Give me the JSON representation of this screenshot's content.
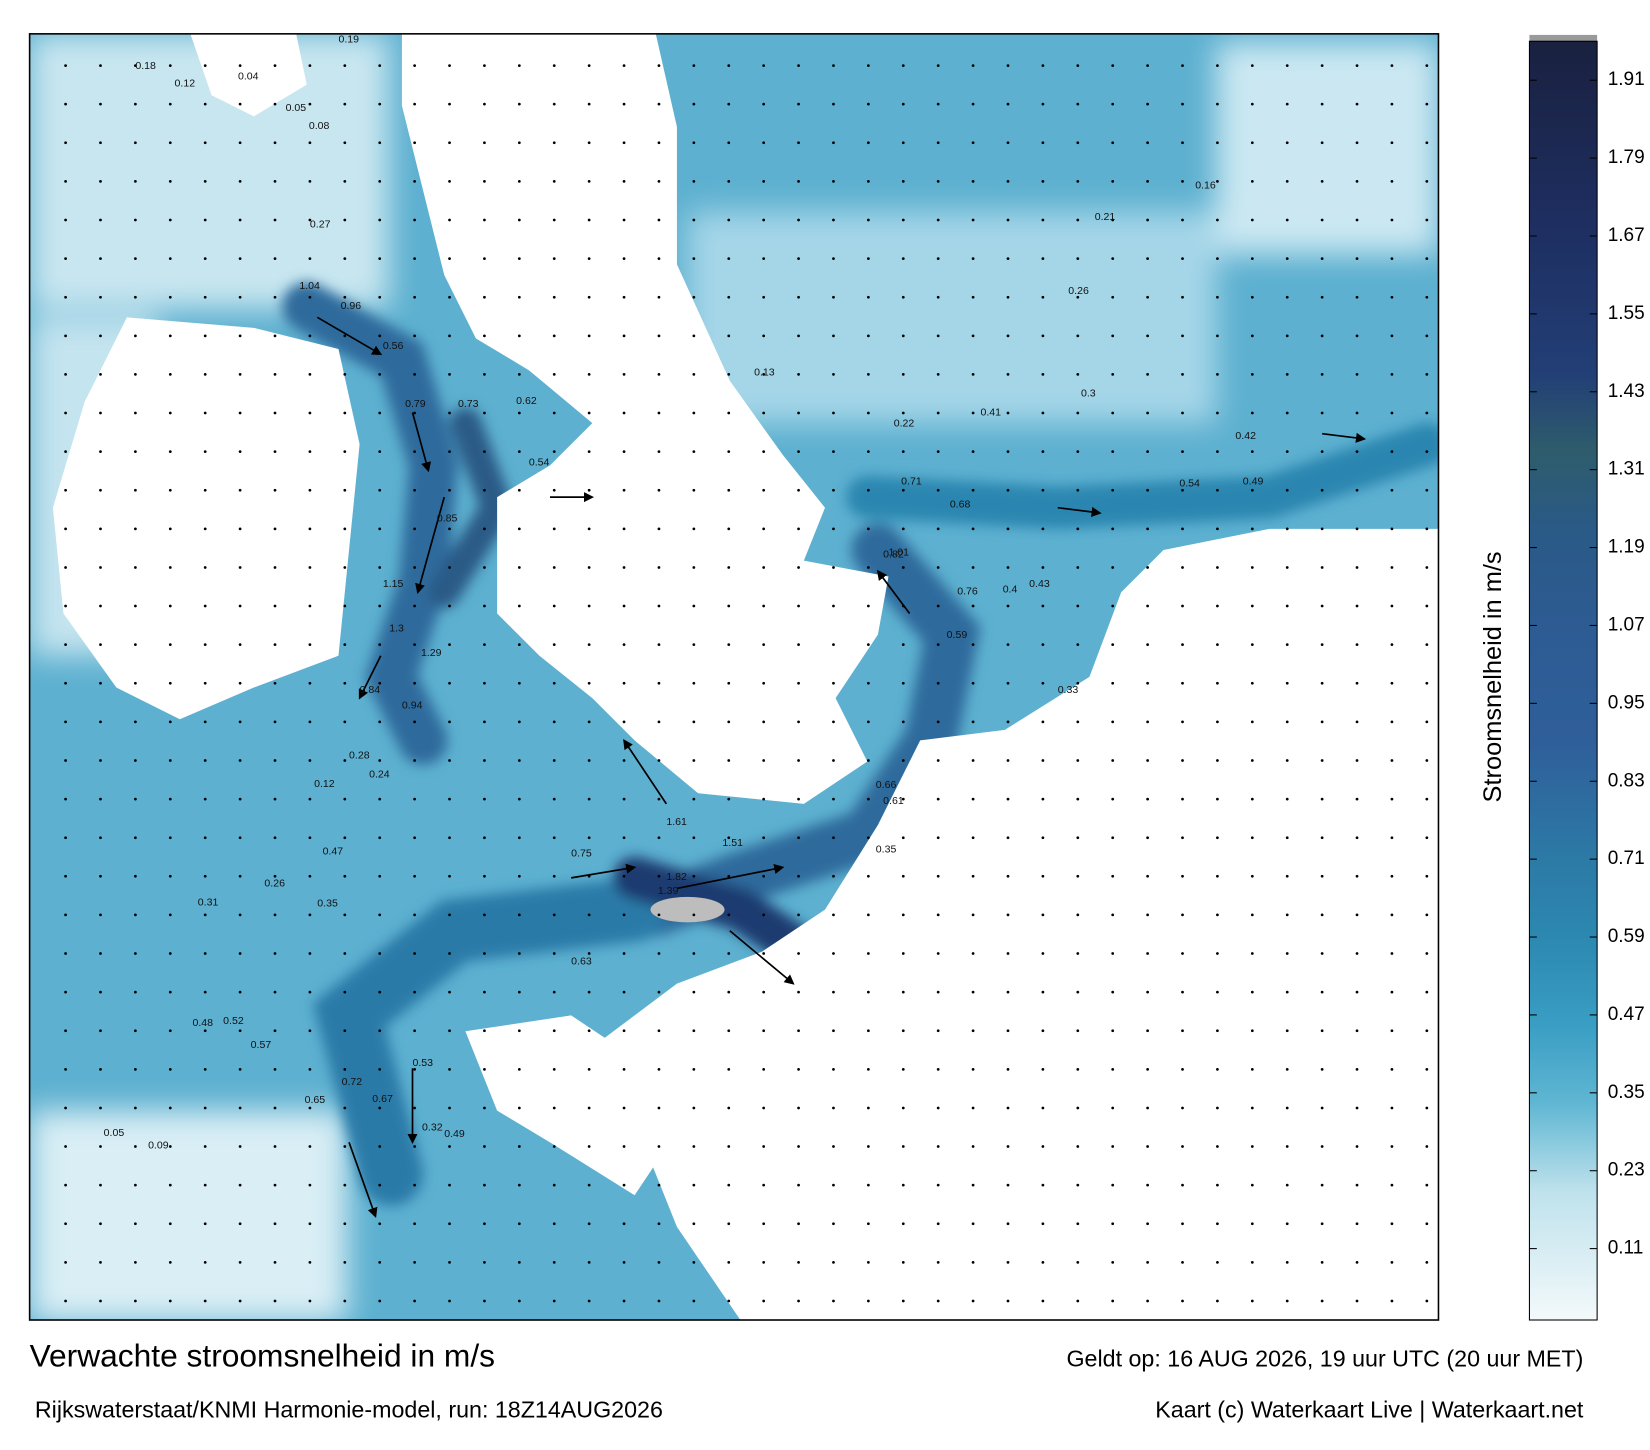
{
  "map": {
    "title": "Verwachte stroomsnelheid in m/s",
    "subtitle": "Rijkswaterstaat/KNMI Harmonie-model, run: 18Z14AUG2026",
    "valid": "Geldt op: 16 AUG 2026, 19 uur UTC (20 uur MET)",
    "credit": "Kaart (c) Waterkaart Live | Waterkaart.net",
    "speed_labels": [
      0.18,
      0.12,
      0.04,
      0.08,
      0.05,
      0.19,
      0.27,
      0.56,
      0.96,
      1.04,
      0.79,
      0.73,
      0.62,
      0.54,
      0.85,
      1.15,
      1.3,
      1.29,
      0.84,
      0.94,
      0.28,
      0.24,
      0.12,
      0.47,
      0.31,
      0.35,
      0.53,
      0.49,
      0.32,
      0.21,
      0.26,
      0.16,
      0.82,
      1.01,
      0.76,
      0.68,
      0.59,
      0.43,
      0.35,
      0.41,
      0.42,
      0.49,
      0.54,
      0.3,
      0.22,
      0.13,
      0.61,
      0.71,
      0.66,
      1.61,
      1.82,
      1.51,
      1.39,
      0.75,
      0.63,
      0.26,
      0.33,
      0.4,
      0.48,
      0.52,
      0.57,
      0.67,
      0.72,
      0.65,
      0.05,
      0.09
    ]
  },
  "colorbar": {
    "label": "Stroomsnelheid in m/s",
    "lim": [
      0,
      1.97
    ],
    "ticks": [
      0.11,
      0.23,
      0.35,
      0.47,
      0.59,
      0.71,
      0.83,
      0.95,
      1.07,
      1.19,
      1.31,
      1.43,
      1.55,
      1.67,
      1.79,
      1.91
    ]
  }
}
